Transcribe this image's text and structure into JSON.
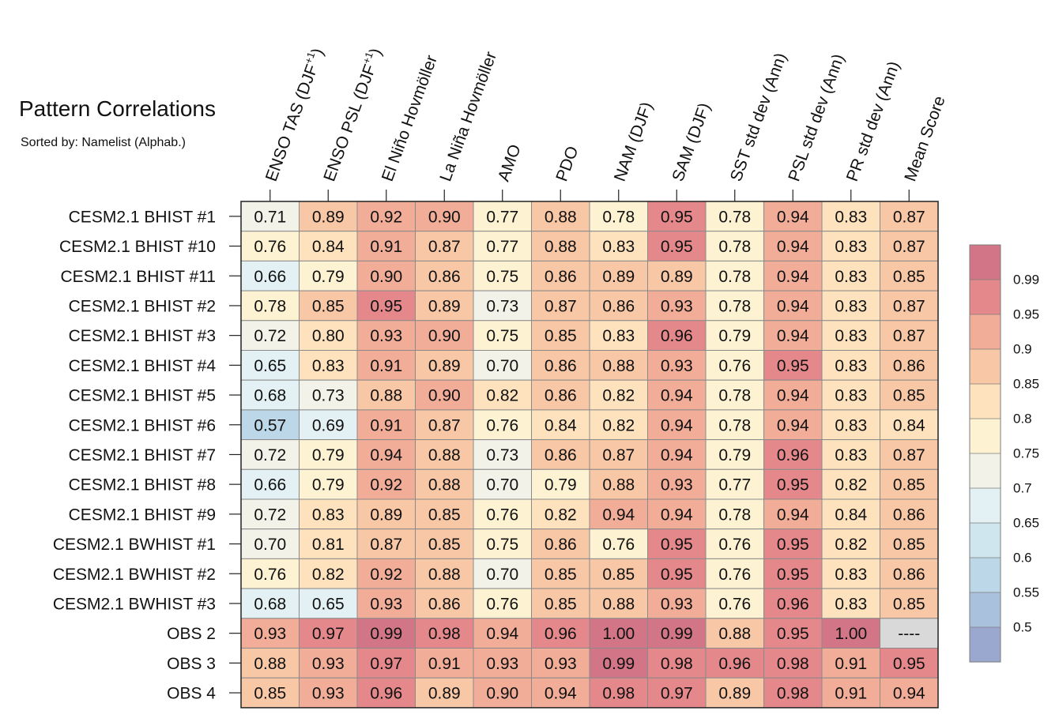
{
  "title": "Pattern Correlations",
  "subtitle": "Sorted by: Namelist (Alphab.)",
  "chart_data": {
    "type": "heatmap",
    "columns": [
      {
        "main": "ENSO TAS (DJF",
        "sup": "+1",
        "tail": ")"
      },
      {
        "main": "ENSO PSL (DJF",
        "sup": "+1",
        "tail": ")"
      },
      {
        "main": "El Niño Hovmöller"
      },
      {
        "main": "La Niña Hovmöller"
      },
      {
        "main": "AMO"
      },
      {
        "main": "PDO"
      },
      {
        "main": "NAM (DJF)"
      },
      {
        "main": "SAM (DJF)"
      },
      {
        "main": "SST std dev (Ann)"
      },
      {
        "main": "PSL std dev (Ann)"
      },
      {
        "main": "PR std dev (Ann)"
      },
      {
        "main": "Mean Score"
      }
    ],
    "rows": [
      "CESM2.1 BHIST #1",
      "CESM2.1 BHIST #10",
      "CESM2.1 BHIST #11",
      "CESM2.1 BHIST #2",
      "CESM2.1 BHIST #3",
      "CESM2.1 BHIST #4",
      "CESM2.1 BHIST #5",
      "CESM2.1 BHIST #6",
      "CESM2.1 BHIST #7",
      "CESM2.1 BHIST #8",
      "CESM2.1 BHIST #9",
      "CESM2.1 BWHIST #1",
      "CESM2.1 BWHIST #2",
      "CESM2.1 BWHIST #3",
      "OBS 2",
      "OBS 3",
      "OBS 4"
    ],
    "values": [
      [
        "0.71",
        "0.89",
        "0.92",
        "0.90",
        "0.77",
        "0.88",
        "0.78",
        "0.95",
        "0.78",
        "0.94",
        "0.83",
        "0.87"
      ],
      [
        "0.76",
        "0.84",
        "0.91",
        "0.87",
        "0.77",
        "0.88",
        "0.83",
        "0.95",
        "0.78",
        "0.94",
        "0.83",
        "0.87"
      ],
      [
        "0.66",
        "0.79",
        "0.90",
        "0.86",
        "0.75",
        "0.86",
        "0.89",
        "0.89",
        "0.78",
        "0.94",
        "0.83",
        "0.85"
      ],
      [
        "0.78",
        "0.85",
        "0.95",
        "0.89",
        "0.73",
        "0.87",
        "0.86",
        "0.93",
        "0.78",
        "0.94",
        "0.83",
        "0.87"
      ],
      [
        "0.72",
        "0.80",
        "0.93",
        "0.90",
        "0.75",
        "0.85",
        "0.83",
        "0.96",
        "0.79",
        "0.94",
        "0.83",
        "0.87"
      ],
      [
        "0.65",
        "0.83",
        "0.91",
        "0.89",
        "0.70",
        "0.86",
        "0.88",
        "0.93",
        "0.76",
        "0.95",
        "0.83",
        "0.86"
      ],
      [
        "0.68",
        "0.73",
        "0.88",
        "0.90",
        "0.82",
        "0.86",
        "0.82",
        "0.94",
        "0.78",
        "0.94",
        "0.83",
        "0.85"
      ],
      [
        "0.57",
        "0.69",
        "0.91",
        "0.87",
        "0.76",
        "0.84",
        "0.82",
        "0.94",
        "0.78",
        "0.94",
        "0.83",
        "0.84"
      ],
      [
        "0.72",
        "0.79",
        "0.94",
        "0.88",
        "0.73",
        "0.86",
        "0.87",
        "0.94",
        "0.79",
        "0.96",
        "0.83",
        "0.87"
      ],
      [
        "0.66",
        "0.79",
        "0.92",
        "0.88",
        "0.70",
        "0.79",
        "0.88",
        "0.93",
        "0.77",
        "0.95",
        "0.82",
        "0.85"
      ],
      [
        "0.72",
        "0.83",
        "0.89",
        "0.85",
        "0.76",
        "0.82",
        "0.94",
        "0.94",
        "0.78",
        "0.94",
        "0.84",
        "0.86"
      ],
      [
        "0.70",
        "0.81",
        "0.87",
        "0.85",
        "0.75",
        "0.86",
        "0.76",
        "0.95",
        "0.76",
        "0.95",
        "0.82",
        "0.85"
      ],
      [
        "0.76",
        "0.82",
        "0.92",
        "0.88",
        "0.70",
        "0.85",
        "0.85",
        "0.95",
        "0.76",
        "0.95",
        "0.83",
        "0.86"
      ],
      [
        "0.68",
        "0.65",
        "0.93",
        "0.86",
        "0.76",
        "0.85",
        "0.88",
        "0.93",
        "0.76",
        "0.96",
        "0.83",
        "0.85"
      ],
      [
        "0.93",
        "0.97",
        "0.99",
        "0.98",
        "0.94",
        "0.96",
        "1.00",
        "0.99",
        "0.88",
        "0.95",
        "1.00",
        "----"
      ],
      [
        "0.88",
        "0.93",
        "0.97",
        "0.91",
        "0.93",
        "0.93",
        "0.99",
        "0.98",
        "0.96",
        "0.98",
        "0.91",
        "0.95"
      ],
      [
        "0.85",
        "0.93",
        "0.96",
        "0.89",
        "0.90",
        "0.94",
        "0.98",
        "0.97",
        "0.89",
        "0.98",
        "0.91",
        "0.94"
      ]
    ],
    "missing_color": "#d9d9d9",
    "colorbar": {
      "labels": [
        "0.99",
        "0.95",
        "0.9",
        "0.85",
        "0.8",
        "0.75",
        "0.7",
        "0.65",
        "0.6",
        "0.55",
        "0.5"
      ],
      "thresholds": [
        0.5,
        0.55,
        0.6,
        0.65,
        0.7,
        0.75,
        0.8,
        0.85,
        0.9,
        0.95,
        0.99
      ],
      "colors": [
        "#9aa8cf",
        "#a9c1dc",
        "#bcd7e7",
        "#d0e6ef",
        "#e4f1f4",
        "#f2f2e8",
        "#fdf2d2",
        "#fde2bd",
        "#f8c7a5",
        "#f1ad98",
        "#e4888b",
        "#d27586"
      ]
    },
    "legend_position": "right"
  }
}
